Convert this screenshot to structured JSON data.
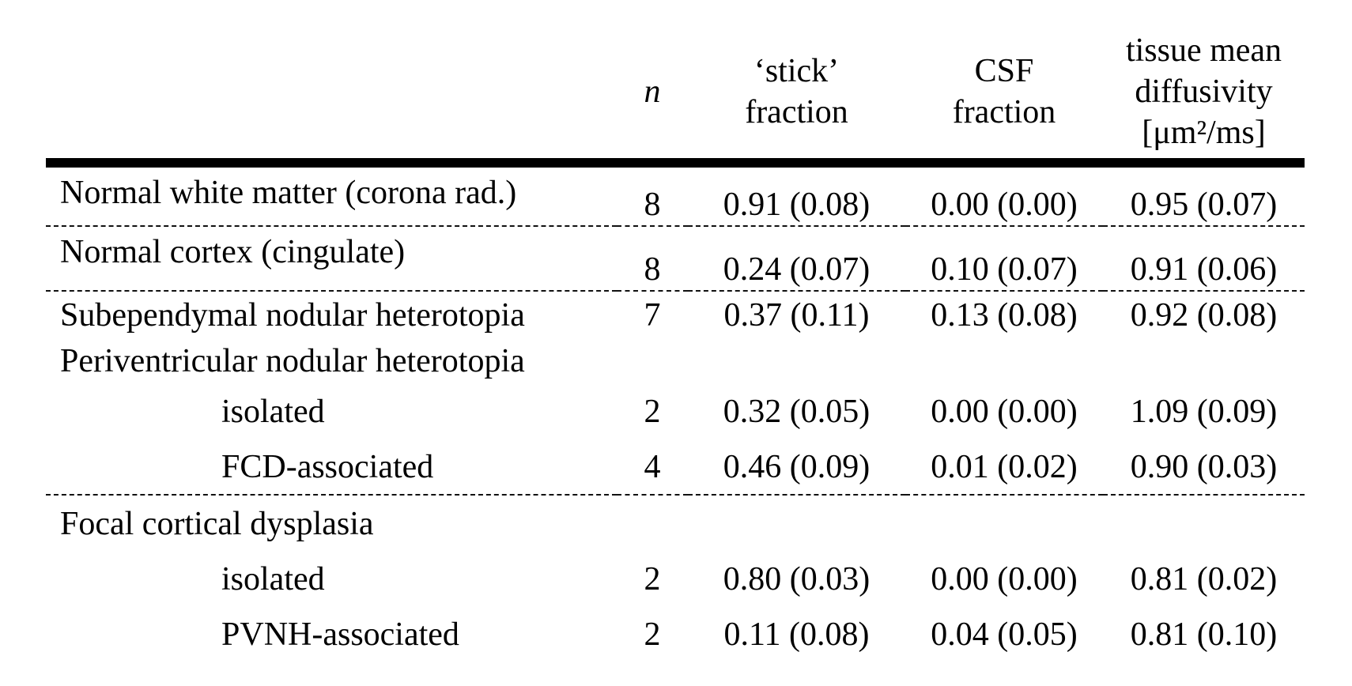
{
  "page": {
    "background": "#ffffff",
    "text_color": "#000000"
  },
  "table": {
    "header": {
      "row_label": "",
      "n": "n",
      "stick": "‘stick’\nfraction",
      "csf": "CSF\nfraction",
      "diffusivity": "tissue mean\ndiffusivity\n[μm²/ms]"
    },
    "rows": [
      {
        "label": "Normal white matter (corona rad.)",
        "n": "8",
        "stick": "0.91 (0.08)",
        "csf": "0.00 (0.00)",
        "diffusivity": "0.95 (0.07)"
      },
      {
        "label": "Normal cortex (cingulate)",
        "n": "8",
        "stick": "0.24 (0.07)",
        "csf": "0.10 (0.07)",
        "diffusivity": "0.91 (0.06)"
      },
      {
        "label": "Subependymal nodular heterotopia",
        "n": "7",
        "stick": "0.37 (0.11)",
        "csf": "0.13 (0.08)",
        "diffusivity": "0.92 (0.08)"
      },
      {
        "label": "Periventricular nodular heterotopia",
        "n": "",
        "stick": "",
        "csf": "",
        "diffusivity": ""
      },
      {
        "label": "isolated",
        "n": "2",
        "stick": "0.32 (0.05)",
        "csf": "0.00 (0.00)",
        "diffusivity": "1.09 (0.09)"
      },
      {
        "label": "FCD-associated",
        "n": "4",
        "stick": "0.46 (0.09)",
        "csf": "0.01 (0.02)",
        "diffusivity": "0.90 (0.03)"
      },
      {
        "label": "Focal cortical dysplasia",
        "n": "",
        "stick": "",
        "csf": "",
        "diffusivity": ""
      },
      {
        "label": "isolated",
        "n": "2",
        "stick": "0.80 (0.03)",
        "csf": "0.00 (0.00)",
        "diffusivity": "0.81 (0.02)"
      },
      {
        "label": "PVNH-associated",
        "n": "2",
        "stick": "0.11 (0.08)",
        "csf": "0.04 (0.05)",
        "diffusivity": "0.81 (0.10)"
      }
    ]
  }
}
